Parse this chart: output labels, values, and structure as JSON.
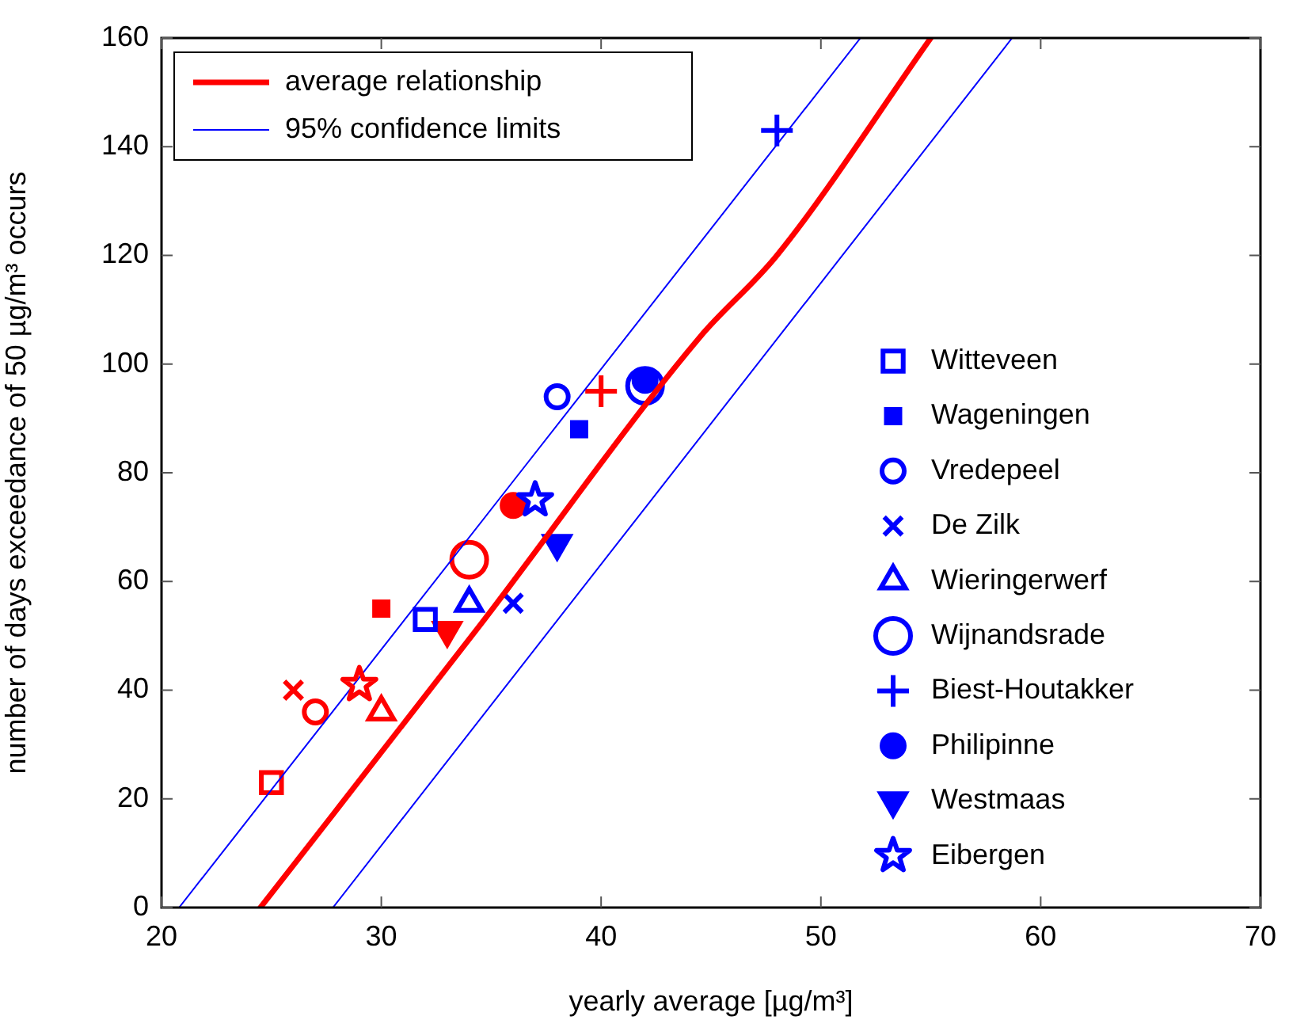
{
  "chart_data": {
    "type": "scatter",
    "xlabel": "yearly average [µg/m³]",
    "ylabel": "number of days exceedance of 50 µg/m³ occurs",
    "xlim": [
      20,
      70
    ],
    "xticks": [
      20,
      30,
      40,
      50,
      60,
      70
    ],
    "ylim": [
      0,
      160
    ],
    "yticks": [
      0,
      20,
      40,
      60,
      80,
      100,
      120,
      140,
      160
    ],
    "grid": false,
    "legend": "top left",
    "series": [
      {
        "type": "line",
        "name": "average relationship",
        "color": "#ff0000",
        "x": [
          24.5,
          34.5,
          44.5,
          48,
          55
        ],
        "values": [
          0,
          52,
          105,
          120,
          160
        ]
      },
      {
        "type": "line",
        "name": "95% confidence limits",
        "color": "#0000ff",
        "x": [
          20.8,
          51.8
        ],
        "values": [
          0,
          160
        ]
      },
      {
        "type": "line",
        "color": "#0000ff",
        "x": [
          27.8,
          58.7
        ],
        "values": [
          0,
          160
        ]
      },
      {
        "name": "Witteveen",
        "marker": "square",
        "color": "#0000ff",
        "colors": [
          "#ff0000",
          "#0000ff"
        ],
        "x": [
          25,
          32
        ],
        "values": [
          23,
          53
        ]
      },
      {
        "name": "Wageningen",
        "marker": "square-filled",
        "color": "#0000ff",
        "colors": [
          "#ff0000",
          "#0000ff"
        ],
        "x": [
          30,
          39
        ],
        "values": [
          55,
          88
        ]
      },
      {
        "name": "Vredepeel",
        "marker": "circle",
        "color": "#0000ff",
        "colors": [
          "#ff0000",
          "#0000ff"
        ],
        "x": [
          27,
          38
        ],
        "values": [
          36,
          94
        ]
      },
      {
        "name": "De Zilk",
        "marker": "x",
        "color": "#0000ff",
        "colors": [
          "#ff0000",
          "#0000ff"
        ],
        "x": [
          26,
          36
        ],
        "values": [
          40,
          56
        ]
      },
      {
        "name": "Wieringerwerf",
        "marker": "triangle",
        "color": "#0000ff",
        "colors": [
          "#ff0000",
          "#0000ff"
        ],
        "x": [
          30,
          34
        ],
        "values": [
          36,
          56
        ]
      },
      {
        "name": "Wijnandsrade",
        "marker": "circle-large",
        "color": "#0000ff",
        "colors": [
          "#ff0000",
          "#0000ff"
        ],
        "x": [
          34,
          42
        ],
        "values": [
          64,
          96
        ]
      },
      {
        "name": "Biest-Houtakker",
        "marker": "cross",
        "color": "#0000ff",
        "colors": [
          "#ff0000",
          "#0000ff"
        ],
        "x": [
          40,
          48
        ],
        "values": [
          95,
          143
        ]
      },
      {
        "name": "Philipinne",
        "marker": "circle-filled",
        "color": "#0000ff",
        "colors": [
          "#ff0000",
          "#0000ff"
        ],
        "x": [
          36,
          42
        ],
        "values": [
          74,
          97
        ]
      },
      {
        "name": "Westmaas",
        "marker": "triangle-down-filled",
        "color": "#0000ff",
        "colors": [
          "#ff0000",
          "#0000ff"
        ],
        "x": [
          33,
          38
        ],
        "values": [
          51,
          67
        ]
      },
      {
        "name": "Eibergen",
        "marker": "star",
        "color": "#0000ff",
        "colors": [
          "#ff0000",
          "#0000ff"
        ],
        "x": [
          29,
          37
        ],
        "values": [
          41,
          75
        ]
      }
    ]
  }
}
